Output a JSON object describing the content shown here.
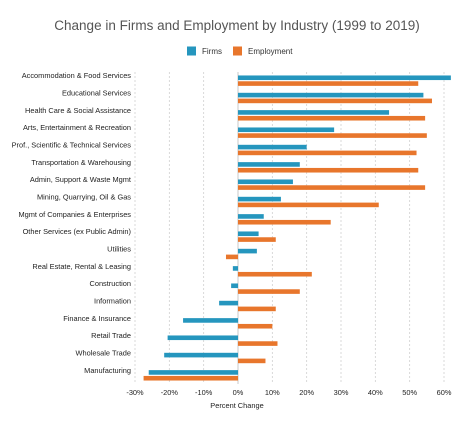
{
  "chart_data": {
    "type": "bar",
    "orientation": "horizontal",
    "title": "Change in Firms and Employment by Industry (1999 to 2019)",
    "xlabel": "Percent Change",
    "ylabel": "",
    "xlim": [
      -30,
      60
    ],
    "xticks": [
      -30,
      -20,
      -10,
      0,
      10,
      20,
      30,
      40,
      50,
      60
    ],
    "xtick_labels": [
      "-30%",
      "-20%",
      "-10%",
      "0%",
      "10%",
      "20%",
      "30%",
      "40%",
      "50%",
      "60%"
    ],
    "grid": true,
    "legend_position": "top-center",
    "categories": [
      "Accommodation & Food Services",
      "Educational Services",
      "Health Care & Social Assistance",
      "Arts, Entertainment & Recreation",
      "Prof., Scientific & Technical Services",
      "Transportation & Warehousing",
      "Admin, Support & Waste Mgmt",
      "Mining, Quarrying, Oil & Gas",
      "Mgmt of Companies & Enterprises",
      "Other Services (ex Public Admin)",
      "Utilities",
      "Real Estate, Rental & Leasing",
      "Construction",
      "Information",
      "Finance & Insurance",
      "Retail Trade",
      "Wholesale Trade",
      "Manufacturing"
    ],
    "series": [
      {
        "name": "Firms",
        "color": "#2596be",
        "values": [
          62,
          54,
          44,
          28,
          20,
          18,
          16,
          12.5,
          7.5,
          6,
          5.5,
          -1.5,
          -2,
          -5.5,
          -16,
          -20.5,
          -21.5,
          -26
        ]
      },
      {
        "name": "Employment",
        "color": "#e8762c",
        "values": [
          52.5,
          56.5,
          54.5,
          55,
          52,
          52.5,
          54.5,
          41,
          27,
          11,
          -3.5,
          21.5,
          18,
          11,
          10,
          11.5,
          8,
          -27.5
        ]
      }
    ]
  }
}
